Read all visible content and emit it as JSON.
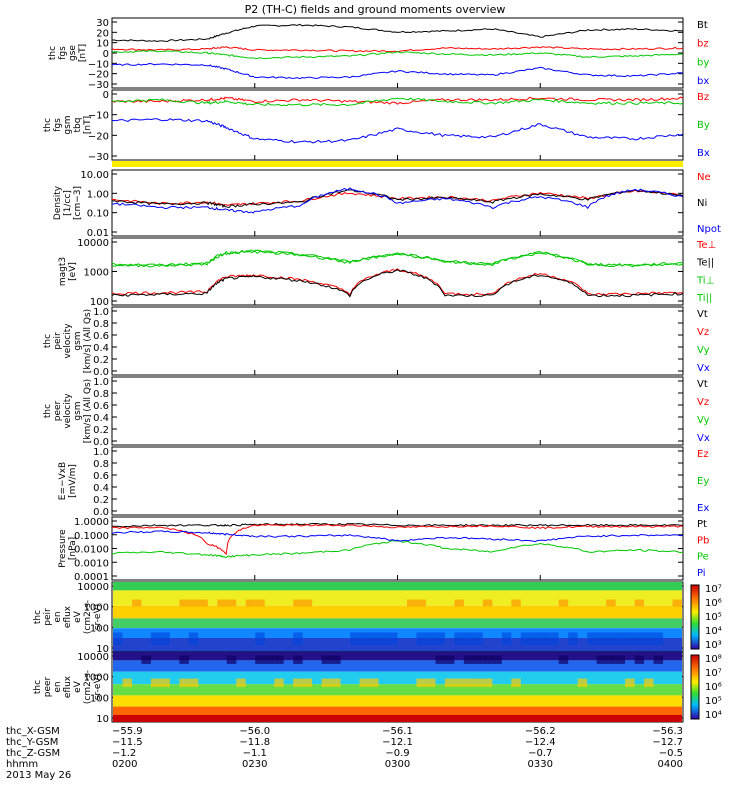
{
  "title": "P2 (TH-C) fields and ground moments overview",
  "panels": [
    {
      "id": "fgs-gse",
      "ylabel": [
        "thc",
        "fgs",
        "gse",
        "[nT]"
      ],
      "yticks": [
        "30",
        "20",
        "10",
        "0",
        "−10",
        "−20",
        "−30"
      ],
      "legend": [
        {
          "text": "Bt",
          "color": "#000000"
        },
        {
          "text": "bz",
          "color": "#ff0000"
        },
        {
          "text": "by",
          "color": "#00c800"
        },
        {
          "text": "bx",
          "color": "#0000ff"
        }
      ]
    },
    {
      "id": "fgs-gsm",
      "ylabel": [
        "thc",
        "fgs",
        "gsm",
        "tbq",
        "[nT]"
      ],
      "yticks": [
        "0",
        "−10",
        "−20",
        "−30"
      ],
      "legend": [
        {
          "text": "Bz",
          "color": "#ff0000"
        },
        {
          "text": "By",
          "color": "#00c800"
        },
        {
          "text": "Bx",
          "color": "#0000ff"
        }
      ]
    },
    {
      "id": "density",
      "ylabel": [
        "Density",
        "[1/cc]",
        "[cm−3]"
      ],
      "yticks": [
        "10.00",
        "1.00",
        "0.10",
        "0.01"
      ],
      "legend": [
        {
          "text": "Ne",
          "color": "#ff0000"
        },
        {
          "text": "Ni",
          "color": "#000000"
        },
        {
          "text": "Npot",
          "color": "#0000ff"
        }
      ]
    },
    {
      "id": "temperature",
      "ylabel": [
        "magt3",
        "[eV]"
      ],
      "yticks": [
        "10000",
        "1000",
        "100"
      ],
      "legend": [
        {
          "text": "Te⊥",
          "color": "#ff0000"
        },
        {
          "text": "Te||",
          "color": "#000000"
        },
        {
          "text": "Ti⊥",
          "color": "#00c800"
        },
        {
          "text": "Ti||",
          "color": "#00c800"
        }
      ]
    },
    {
      "id": "peir-velocity",
      "ylabel": [
        "thc",
        "peir",
        "velocity",
        "gsm",
        "[km/s] (All Qs)"
      ],
      "yticks": [
        "1.0",
        "0.8",
        "0.6",
        "0.4",
        "0.2",
        "0.0"
      ],
      "legend": [
        {
          "text": "Vt",
          "color": "#000000"
        },
        {
          "text": "Vz",
          "color": "#ff0000"
        },
        {
          "text": "Vy",
          "color": "#00c800"
        },
        {
          "text": "Vx",
          "color": "#0000ff"
        }
      ]
    },
    {
      "id": "peer-velocity",
      "ylabel": [
        "thc",
        "peer",
        "velocity",
        "gsm",
        "[km/s] (All Qs)"
      ],
      "yticks": [
        "1.0",
        "0.8",
        "0.6",
        "0.4",
        "0.2",
        "0.0"
      ],
      "legend": [
        {
          "text": "Vt",
          "color": "#000000"
        },
        {
          "text": "Vz",
          "color": "#ff0000"
        },
        {
          "text": "Vy",
          "color": "#00c800"
        },
        {
          "text": "Vx",
          "color": "#0000ff"
        }
      ]
    },
    {
      "id": "efield",
      "ylabel": [
        "E=−VxB",
        "[mV/m]"
      ],
      "yticks": [
        "1.0",
        "0.8",
        "0.6",
        "0.4",
        "0.2",
        "0.0"
      ],
      "legend": [
        {
          "text": "Ez",
          "color": "#ff0000"
        },
        {
          "text": "Ey",
          "color": "#00c800"
        },
        {
          "text": "Ex",
          "color": "#0000ff"
        }
      ]
    },
    {
      "id": "pressure",
      "ylabel": [
        "Pressure",
        "[nPa]"
      ],
      "yticks": [
        "1.0000",
        "0.1000",
        "0.0100",
        "0.0010",
        "0.0001"
      ],
      "legend": [
        {
          "text": "Pt",
          "color": "#000000"
        },
        {
          "text": "Pb",
          "color": "#ff0000"
        },
        {
          "text": "Pe",
          "color": "#00c800"
        },
        {
          "text": "Pi",
          "color": "#0000ff"
        }
      ]
    },
    {
      "id": "peir-eflux",
      "ylabel": [
        "thc",
        "peir",
        "en",
        "eflux",
        "eV",
        "(cm2-s-",
        "sr-eV)"
      ],
      "yticks": [
        "10000",
        "1000",
        "100",
        "10"
      ],
      "colorbar": [
        "10⁷",
        "10⁶",
        "10⁵",
        "10⁴",
        "10³"
      ]
    },
    {
      "id": "peer-eflux",
      "ylabel": [
        "thc",
        "peer",
        "en",
        "eflux",
        "eV",
        "(cm2-s-",
        "sr-eV)"
      ],
      "yticks": [
        "10000",
        "1000",
        "100",
        "10"
      ],
      "colorbar": [
        "10⁸",
        "10⁷",
        "10⁶",
        "10⁵",
        "10⁴"
      ]
    }
  ],
  "xaxis": {
    "rows": [
      {
        "label": "thc_X-GSM",
        "values": [
          "−55.9",
          "−56.0",
          "−56.1",
          "−56.2",
          "−56.3"
        ]
      },
      {
        "label": "thc_Y-GSM",
        "values": [
          "−11.5",
          "−11.8",
          "−12.1",
          "−12.4",
          "−12.7"
        ]
      },
      {
        "label": "thc_Z-GSM",
        "values": [
          "−1.2",
          "−1.1",
          "−0.9",
          "−0.7",
          "−0.5"
        ]
      },
      {
        "label": "hhmm",
        "values": [
          "0200",
          "0230",
          "0300",
          "0330",
          "0400"
        ]
      }
    ],
    "date": "2013 May 26"
  },
  "chart_data": [
    {
      "type": "line",
      "panel": "fgs-gse",
      "ylabel": "thc fgs gse [nT]",
      "ylim": [
        -35,
        35
      ],
      "xlim": [
        "02:00",
        "04:00"
      ],
      "x": [
        "02:00",
        "02:10",
        "02:20",
        "02:24",
        "02:30",
        "02:40",
        "02:50",
        "03:00",
        "03:10",
        "03:20",
        "03:30",
        "03:40",
        "03:50",
        "04:00"
      ],
      "series": [
        {
          "name": "Bt",
          "color": "#000000",
          "values": [
            13,
            12,
            14,
            20,
            27,
            28,
            26,
            21,
            22,
            24,
            16,
            23,
            24,
            22
          ]
        },
        {
          "name": "bz",
          "color": "#ff0000",
          "values": [
            4,
            3,
            4,
            6,
            3,
            3,
            2,
            2,
            5,
            4,
            6,
            4,
            4,
            5
          ]
        },
        {
          "name": "by",
          "color": "#00c800",
          "values": [
            1,
            2,
            0,
            -2,
            -5,
            -4,
            -3,
            1,
            -1,
            -2,
            0,
            -4,
            -3,
            -1
          ]
        },
        {
          "name": "bx",
          "color": "#0000ff",
          "values": [
            -12,
            -11,
            -12,
            -16,
            -24,
            -25,
            -24,
            -18,
            -21,
            -22,
            -15,
            -22,
            -23,
            -20
          ]
        }
      ]
    },
    {
      "type": "line",
      "panel": "fgs-gsm",
      "ylabel": "thc fgs gsm [nT]",
      "ylim": [
        -35,
        8
      ],
      "xlim": [
        "02:00",
        "04:00"
      ],
      "x": [
        "02:00",
        "02:10",
        "02:20",
        "02:24",
        "02:30",
        "02:40",
        "02:50",
        "03:00",
        "03:10",
        "03:20",
        "03:30",
        "03:40",
        "03:50",
        "04:00"
      ],
      "series": [
        {
          "name": "Bz",
          "color": "#ff0000",
          "values": [
            1,
            1,
            2,
            3,
            1,
            2,
            1,
            0,
            2,
            2,
            3,
            2,
            2,
            3
          ]
        },
        {
          "name": "By",
          "color": "#00c800",
          "values": [
            1,
            2,
            0,
            1,
            -1,
            -1,
            -1,
            3,
            1,
            0,
            2,
            0,
            0,
            0
          ]
        },
        {
          "name": "Bx",
          "color": "#0000ff",
          "values": [
            -11,
            -10,
            -11,
            -15,
            -22,
            -24,
            -23,
            -16,
            -20,
            -21,
            -13,
            -21,
            -22,
            -19
          ]
        }
      ]
    },
    {
      "type": "line",
      "panel": "density",
      "ylabel": "Density [cm-3]",
      "yscale": "log",
      "ylim": [
        0.01,
        10
      ],
      "xlim": [
        "02:00",
        "04:00"
      ],
      "x": [
        "02:00",
        "02:10",
        "02:20",
        "02:24",
        "02:30",
        "02:40",
        "02:50",
        "03:00",
        "03:10",
        "03:20",
        "03:30",
        "03:40",
        "03:50",
        "04:00"
      ],
      "series": [
        {
          "name": "Ne",
          "color": "#ff0000",
          "values": [
            0.45,
            0.3,
            0.35,
            0.25,
            0.3,
            0.4,
            0.9,
            0.5,
            0.6,
            0.4,
            0.9,
            0.5,
            1.1,
            0.7
          ]
        },
        {
          "name": "Ni",
          "color": "#000000",
          "values": [
            0.4,
            0.28,
            0.32,
            0.22,
            0.28,
            0.35,
            1.2,
            0.45,
            0.55,
            0.35,
            0.8,
            0.45,
            1.2,
            0.65
          ]
        },
        {
          "name": "Npot",
          "color": "#0000ff",
          "values": [
            0.3,
            0.2,
            0.2,
            0.15,
            0.12,
            0.25,
            1.4,
            0.3,
            0.5,
            0.2,
            0.6,
            0.2,
            1.3,
            0.6
          ]
        }
      ]
    },
    {
      "type": "line",
      "panel": "temperature",
      "ylabel": "magt3 [eV]",
      "yscale": "log",
      "ylim": [
        20,
        12000
      ],
      "xlim": [
        "02:00",
        "04:00"
      ],
      "x": [
        "02:00",
        "02:10",
        "02:20",
        "02:24",
        "02:30",
        "02:40",
        "02:50",
        "03:00",
        "03:10",
        "03:20",
        "03:30",
        "03:40",
        "03:50",
        "04:00"
      ],
      "series": [
        {
          "name": "Te⊥",
          "color": "#ff0000",
          "values": [
            60,
            65,
            70,
            300,
            350,
            220,
            60,
            600,
            60,
            55,
            400,
            55,
            60,
            65
          ]
        },
        {
          "name": "Te||",
          "color": "#000000",
          "values": [
            50,
            55,
            60,
            250,
            300,
            200,
            50,
            550,
            50,
            50,
            350,
            50,
            50,
            60
          ]
        },
        {
          "name": "Ti⊥",
          "color": "#00c800",
          "values": [
            1000,
            900,
            1100,
            3000,
            3500,
            2500,
            1200,
            2800,
            1300,
            1000,
            3000,
            1000,
            900,
            1100
          ]
        },
        {
          "name": "Ti||",
          "color": "#00c800",
          "values": [
            900,
            850,
            1000,
            2800,
            3200,
            2300,
            1100,
            2600,
            1200,
            950,
            2800,
            950,
            850,
            1000
          ]
        }
      ]
    },
    {
      "type": "line",
      "panel": "pressure",
      "ylabel": "Pressure [nPa]",
      "yscale": "log",
      "ylim": [
        0.0001,
        1
      ],
      "xlim": [
        "02:00",
        "04:00"
      ],
      "x": [
        "02:00",
        "02:10",
        "02:20",
        "02:24",
        "02:30",
        "02:40",
        "02:50",
        "03:00",
        "03:10",
        "03:20",
        "03:30",
        "03:40",
        "03:50",
        "04:00"
      ],
      "series": [
        {
          "name": "Pt",
          "color": "#000000",
          "values": [
            0.25,
            0.3,
            0.3,
            0.3,
            0.33,
            0.35,
            0.35,
            0.3,
            0.3,
            0.3,
            0.3,
            0.3,
            0.3,
            0.3
          ]
        },
        {
          "name": "Pb",
          "color": "#ff0000",
          "values": [
            0.2,
            0.22,
            0.02,
            0.005,
            0.3,
            0.3,
            0.3,
            0.22,
            0.25,
            0.28,
            0.2,
            0.25,
            0.25,
            0.25
          ]
        },
        {
          "name": "Pe",
          "color": "#00c800",
          "values": [
            0.005,
            0.006,
            0.004,
            0.003,
            0.004,
            0.005,
            0.008,
            0.03,
            0.01,
            0.006,
            0.02,
            0.006,
            0.008,
            0.006
          ]
        },
        {
          "name": "Pi",
          "color": "#0000ff",
          "values": [
            0.1,
            0.12,
            0.1,
            0.08,
            0.06,
            0.06,
            0.07,
            0.03,
            0.05,
            0.04,
            0.03,
            0.06,
            0.07,
            0.07
          ]
        }
      ]
    },
    {
      "type": "heatmap",
      "panel": "peir-eflux",
      "ylabel": "thc peir en eflux eV/(cm2-s-sr-eV)",
      "yscale": "log",
      "ylim": [
        5,
        25000
      ],
      "colorbar_range": [
        "10³",
        "10⁷"
      ],
      "xlim": [
        "02:00",
        "04:00"
      ]
    },
    {
      "type": "heatmap",
      "panel": "peer-eflux",
      "ylabel": "thc peer en eflux eV/(cm2-s-sr-eV)",
      "yscale": "log",
      "ylim": [
        5,
        25000
      ],
      "colorbar_range": [
        "10⁴",
        "10⁸"
      ],
      "xlim": [
        "02:00",
        "04:00"
      ]
    }
  ],
  "status_bar": {
    "fill_color": "#ffee00"
  }
}
